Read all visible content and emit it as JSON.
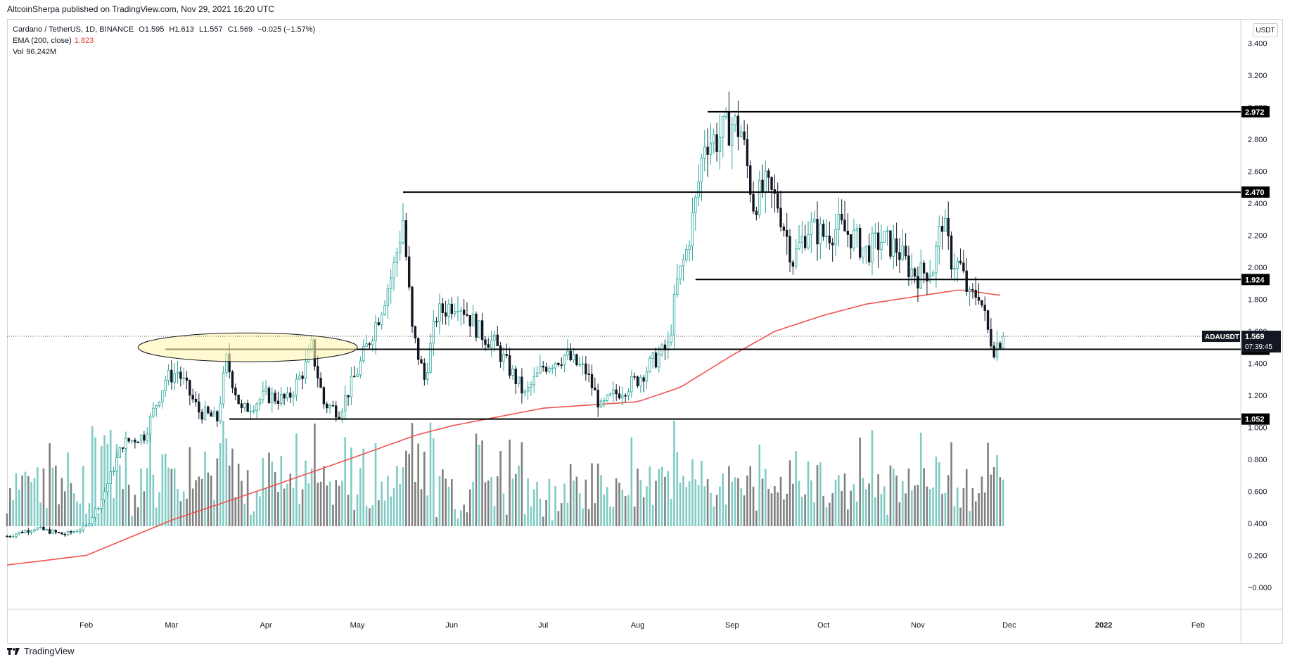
{
  "header": {
    "published": "AltcoinSherpa published on TradingView.com, Nov 29, 2021 16:20 UTC"
  },
  "legend": {
    "symbol": "Cardano / TetherUS, 1D, BINANCE",
    "open": "O1.595",
    "high": "H1.613",
    "low": "L1.557",
    "close": "C1.569",
    "change": "−0.025 (−1.57%)",
    "ema_label": "EMA (200, close)",
    "ema_value": "1.823",
    "vol_label": "Vol",
    "vol_value": "96.242M"
  },
  "currency_button": "USDT",
  "footer": {
    "brand": "TradingView"
  },
  "colors": {
    "up": "#26a69a",
    "down": "#131722",
    "ema": "#ef5350",
    "vol_up": "#80cbc4",
    "vol_down": "#808080",
    "ellipse_fill": "#fff7b0",
    "ellipse_stroke": "#131722"
  },
  "chart_data": {
    "type": "candlestick",
    "symbol": "ADAUSDT",
    "y_ticks": [
      "3.400",
      "3.200",
      "3.000",
      "2.800",
      "2.600",
      "2.400",
      "2.200",
      "2.000",
      "1.800",
      "1.600",
      "1.400",
      "1.200",
      "1.000",
      "0.800",
      "0.600",
      "0.400",
      "0.200",
      "−0.000"
    ],
    "ylim": [
      -0.1,
      3.55
    ],
    "x_ticks": [
      "Feb",
      "Mar",
      "Apr",
      "May",
      "Jun",
      "Jul",
      "Aug",
      "Sep",
      "Oct",
      "Nov",
      "Dec",
      "2022",
      "Feb"
    ],
    "x_tick_dates": [
      "2021-02-01",
      "2021-03-01",
      "2021-04-01",
      "2021-05-01",
      "2021-06-01",
      "2021-07-01",
      "2021-08-01",
      "2021-09-01",
      "2021-10-01",
      "2021-11-01",
      "2021-12-01",
      "2022-01-01",
      "2022-02-01"
    ],
    "xlim": [
      "2021-01-06",
      "2022-02-15"
    ],
    "price_anchors": [
      [
        "2021-01-06",
        0.32
      ],
      [
        "2021-01-15",
        0.37
      ],
      [
        "2021-01-25",
        0.33
      ],
      [
        "2021-02-01",
        0.38
      ],
      [
        "2021-02-06",
        0.55
      ],
      [
        "2021-02-13",
        0.9
      ],
      [
        "2021-02-20",
        0.95
      ],
      [
        "2021-02-27",
        1.3
      ],
      [
        "2021-03-03",
        1.35
      ],
      [
        "2021-03-10",
        1.1
      ],
      [
        "2021-03-16",
        1.05
      ],
      [
        "2021-03-19",
        1.42
      ],
      [
        "2021-03-24",
        1.1
      ],
      [
        "2021-04-01",
        1.2
      ],
      [
        "2021-04-08",
        1.17
      ],
      [
        "2021-04-14",
        1.38
      ],
      [
        "2021-04-16",
        1.5
      ],
      [
        "2021-04-20",
        1.15
      ],
      [
        "2021-04-25",
        1.1
      ],
      [
        "2021-05-01",
        1.35
      ],
      [
        "2021-05-08",
        1.7
      ],
      [
        "2021-05-13",
        2.0
      ],
      [
        "2021-05-16",
        2.3
      ],
      [
        "2021-05-19",
        1.6
      ],
      [
        "2021-05-23",
        1.3
      ],
      [
        "2021-05-27",
        1.7
      ],
      [
        "2021-06-03",
        1.8
      ],
      [
        "2021-06-10",
        1.6
      ],
      [
        "2021-06-15",
        1.52
      ],
      [
        "2021-06-22",
        1.3
      ],
      [
        "2021-06-25",
        1.2
      ],
      [
        "2021-07-01",
        1.38
      ],
      [
        "2021-07-08",
        1.45
      ],
      [
        "2021-07-15",
        1.35
      ],
      [
        "2021-07-20",
        1.12
      ],
      [
        "2021-07-24",
        1.2
      ],
      [
        "2021-08-01",
        1.3
      ],
      [
        "2021-08-06",
        1.41
      ],
      [
        "2021-08-11",
        1.5
      ],
      [
        "2021-08-14",
        1.9
      ],
      [
        "2021-08-17",
        2.1
      ],
      [
        "2021-08-20",
        2.4
      ],
      [
        "2021-08-23",
        2.8
      ],
      [
        "2021-08-27",
        2.8
      ],
      [
        "2021-09-01",
        2.9
      ],
      [
        "2021-09-04",
        2.85
      ],
      [
        "2021-09-08",
        2.4
      ],
      [
        "2021-09-12",
        2.5
      ],
      [
        "2021-09-16",
        2.4
      ],
      [
        "2021-09-21",
        2.05
      ],
      [
        "2021-09-26",
        2.25
      ],
      [
        "2021-10-01",
        2.2
      ],
      [
        "2021-10-06",
        2.25
      ],
      [
        "2021-10-10",
        2.2
      ],
      [
        "2021-10-15",
        2.1
      ],
      [
        "2021-10-20",
        2.17
      ],
      [
        "2021-10-25",
        2.12
      ],
      [
        "2021-10-29",
        2.0
      ],
      [
        "2021-11-01",
        1.95
      ],
      [
        "2021-11-06",
        2.0
      ],
      [
        "2021-11-09",
        2.3
      ],
      [
        "2021-11-12",
        2.05
      ],
      [
        "2021-11-15",
        2.0
      ],
      [
        "2021-11-18",
        1.8
      ],
      [
        "2021-11-21",
        1.85
      ],
      [
        "2021-11-24",
        1.6
      ],
      [
        "2021-11-26",
        1.5
      ],
      [
        "2021-11-29",
        1.569
      ]
    ],
    "ema_anchors": [
      [
        "2021-01-06",
        0.14
      ],
      [
        "2021-02-01",
        0.2
      ],
      [
        "2021-03-01",
        0.42
      ],
      [
        "2021-04-01",
        0.62
      ],
      [
        "2021-05-01",
        0.82
      ],
      [
        "2021-05-20",
        0.95
      ],
      [
        "2021-06-01",
        1.01
      ],
      [
        "2021-07-01",
        1.12
      ],
      [
        "2021-08-01",
        1.16
      ],
      [
        "2021-08-15",
        1.25
      ],
      [
        "2021-09-01",
        1.45
      ],
      [
        "2021-09-15",
        1.6
      ],
      [
        "2021-10-01",
        1.7
      ],
      [
        "2021-10-15",
        1.77
      ],
      [
        "2021-11-01",
        1.82
      ],
      [
        "2021-11-15",
        1.86
      ],
      [
        "2021-11-29",
        1.823
      ]
    ],
    "horizontal_levels": [
      {
        "start": "2021-08-24",
        "value": 2.972,
        "label": "2.972"
      },
      {
        "start": "2021-05-16",
        "value": 2.47,
        "label": "2.470"
      },
      {
        "start": "2021-08-20",
        "value": 1.924,
        "label": "1.924"
      },
      {
        "start": "2021-02-27",
        "value": 1.488,
        "label": "1.488"
      },
      {
        "start": "2021-03-20",
        "value": 1.052,
        "label": "1.052"
      }
    ],
    "current_price": {
      "value": 1.569,
      "label": "1.569",
      "symbol": "ADAUSDT",
      "countdown": "07:39:45"
    },
    "highlight_ellipse": {
      "from": "2021-02-18",
      "to": "2021-05-01",
      "center": 1.5,
      "half_height": 0.09
    }
  }
}
